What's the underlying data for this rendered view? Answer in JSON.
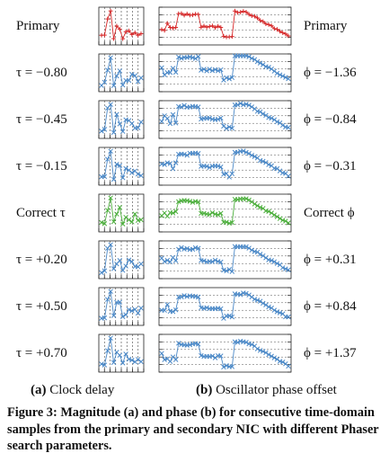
{
  "rows": [
    {
      "left": "Primary",
      "right": "Primary",
      "color": "#d62728",
      "marker": "plus",
      "tick_style": "dashed",
      "phase_offset": 0
    },
    {
      "left": "τ = −0.80",
      "right": "ϕ = −1.36",
      "color": "#4a88c7",
      "marker": "x",
      "tick_style": "solid",
      "phase_offset": 1.2
    },
    {
      "left": "τ = −0.45",
      "right": "ϕ = −0.84",
      "color": "#4a88c7",
      "marker": "x",
      "tick_style": "solid",
      "phase_offset": 0.4
    },
    {
      "left": "τ = −0.15",
      "right": "ϕ = −0.31",
      "color": "#4a88c7",
      "marker": "x",
      "tick_style": "solid",
      "phase_offset": 0.15
    },
    {
      "left": "Correct τ",
      "right": "Correct ϕ",
      "color": "#4caf3c",
      "marker": "x",
      "tick_style": "solid",
      "phase_offset": 0
    },
    {
      "left": "τ = +0.20",
      "right": "ϕ = +0.31",
      "color": "#4a88c7",
      "marker": "x",
      "tick_style": "solid",
      "phase_offset": -0.2
    },
    {
      "left": "τ = +0.50",
      "right": "ϕ = +0.84",
      "color": "#4a88c7",
      "marker": "x",
      "tick_style": "solid",
      "phase_offset": -0.45
    },
    {
      "left": "τ = +0.70",
      "right": "ϕ = +1.37",
      "color": "#4a88c7",
      "marker": "x",
      "tick_style": "solid",
      "phase_offset": -0.9
    }
  ],
  "subcaptions": {
    "a_tag": "(a)",
    "a_text": "Clock delay",
    "b_tag": "(b)",
    "b_text": "Oscillator phase offset"
  },
  "caption": {
    "fig_no": "Figure 3:",
    "body": "Magnitude (a) and phase (b) for consecutive time-domain samples from the primary and secondary NIC with different Phaser search parameters."
  }
}
